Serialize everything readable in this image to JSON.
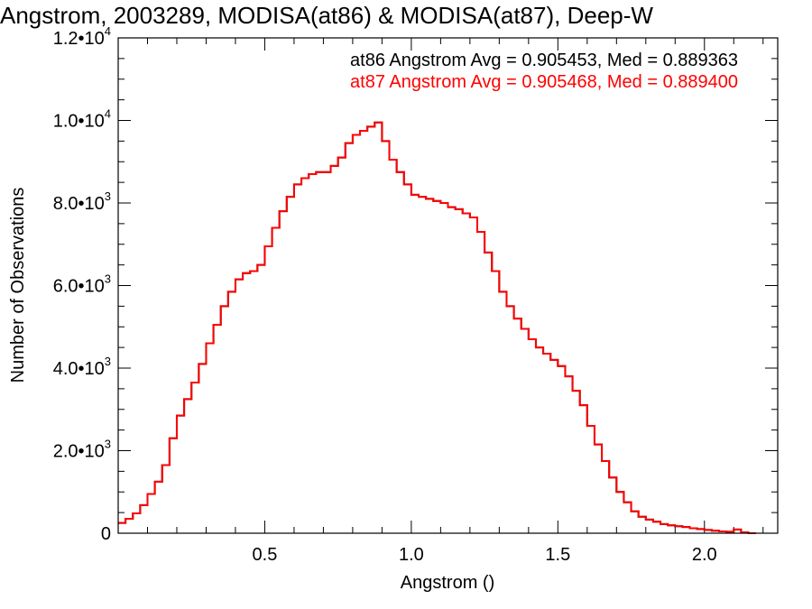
{
  "chart_data": {
    "type": "histogram-step",
    "title": "Angstrom, 2003289, MODISA(at86) & MODISA(at87), Deep-W",
    "xlabel": "Angstrom ()",
    "ylabel": "Number of Observations",
    "xlim": [
      0.0,
      2.25
    ],
    "ylim": [
      0,
      12000
    ],
    "x_ticks": [
      {
        "value": 0.5,
        "label": "0.5"
      },
      {
        "value": 1.0,
        "label": "1.0"
      },
      {
        "value": 1.5,
        "label": "1.5"
      },
      {
        "value": 2.0,
        "label": "2.0"
      }
    ],
    "y_ticks": [
      {
        "value": 0,
        "mantissa": "0",
        "exponent": ""
      },
      {
        "value": 2000,
        "mantissa": "2.0•10",
        "exponent": "3"
      },
      {
        "value": 4000,
        "mantissa": "4.0•10",
        "exponent": "3"
      },
      {
        "value": 6000,
        "mantissa": "6.0•10",
        "exponent": "3"
      },
      {
        "value": 8000,
        "mantissa": "8.0•10",
        "exponent": "3"
      },
      {
        "value": 10000,
        "mantissa": "1.0•10",
        "exponent": "4"
      },
      {
        "value": 12000,
        "mantissa": "1.2•10",
        "exponent": "4"
      }
    ],
    "grid": false,
    "series": [
      {
        "name": "at86",
        "color": "#000000",
        "stats_label": "at86 Angstrom Avg = 0.905453, Med = 0.889363",
        "x": [
          0.0,
          0.025,
          0.05,
          0.075,
          0.1,
          0.125,
          0.15,
          0.175,
          0.2,
          0.225,
          0.25,
          0.275,
          0.3,
          0.325,
          0.35,
          0.375,
          0.4,
          0.425,
          0.45,
          0.475,
          0.5,
          0.525,
          0.55,
          0.575,
          0.6,
          0.625,
          0.65,
          0.675,
          0.7,
          0.725,
          0.75,
          0.775,
          0.8,
          0.825,
          0.85,
          0.875,
          0.9,
          0.925,
          0.95,
          0.975,
          1.0,
          1.025,
          1.05,
          1.075,
          1.1,
          1.125,
          1.15,
          1.175,
          1.2,
          1.225,
          1.25,
          1.275,
          1.3,
          1.325,
          1.35,
          1.375,
          1.4,
          1.425,
          1.45,
          1.475,
          1.5,
          1.525,
          1.55,
          1.575,
          1.6,
          1.625,
          1.65,
          1.675,
          1.7,
          1.725,
          1.75,
          1.775,
          1.8,
          1.825,
          1.85,
          1.875,
          1.9,
          1.925,
          1.95,
          1.975,
          2.0,
          2.025,
          2.05,
          2.075,
          2.1,
          2.125,
          2.15
        ],
        "y": [
          250,
          350,
          480,
          680,
          950,
          1250,
          1650,
          2300,
          2850,
          3250,
          3650,
          4100,
          4600,
          5050,
          5500,
          5850,
          6150,
          6300,
          6350,
          6500,
          6950,
          7400,
          7800,
          8150,
          8450,
          8600,
          8700,
          8750,
          8750,
          8900,
          9100,
          9450,
          9650,
          9750,
          9850,
          9950,
          9500,
          9050,
          8750,
          8450,
          8200,
          8150,
          8100,
          8050,
          8000,
          7900,
          7850,
          7750,
          7650,
          7300,
          6800,
          6350,
          5850,
          5500,
          5200,
          4950,
          4700,
          4500,
          4350,
          4200,
          4050,
          3800,
          3450,
          3100,
          2600,
          2150,
          1750,
          1350,
          1000,
          750,
          530,
          400,
          330,
          280,
          220,
          190,
          170,
          150,
          120,
          100,
          80,
          60,
          45,
          35,
          90,
          20,
          0
        ]
      },
      {
        "name": "at87",
        "color": "#ff0000",
        "stats_label": "at87 Angstrom Avg = 0.905468, Med = 0.889400",
        "x": [
          0.0,
          0.025,
          0.05,
          0.075,
          0.1,
          0.125,
          0.15,
          0.175,
          0.2,
          0.225,
          0.25,
          0.275,
          0.3,
          0.325,
          0.35,
          0.375,
          0.4,
          0.425,
          0.45,
          0.475,
          0.5,
          0.525,
          0.55,
          0.575,
          0.6,
          0.625,
          0.65,
          0.675,
          0.7,
          0.725,
          0.75,
          0.775,
          0.8,
          0.825,
          0.85,
          0.875,
          0.9,
          0.925,
          0.95,
          0.975,
          1.0,
          1.025,
          1.05,
          1.075,
          1.1,
          1.125,
          1.15,
          1.175,
          1.2,
          1.225,
          1.25,
          1.275,
          1.3,
          1.325,
          1.35,
          1.375,
          1.4,
          1.425,
          1.45,
          1.475,
          1.5,
          1.525,
          1.55,
          1.575,
          1.6,
          1.625,
          1.65,
          1.675,
          1.7,
          1.725,
          1.75,
          1.775,
          1.8,
          1.825,
          1.85,
          1.875,
          1.9,
          1.925,
          1.95,
          1.975,
          2.0,
          2.025,
          2.05,
          2.075,
          2.1,
          2.125,
          2.15
        ],
        "y": [
          250,
          350,
          480,
          680,
          950,
          1250,
          1650,
          2300,
          2850,
          3250,
          3650,
          4100,
          4600,
          5050,
          5500,
          5850,
          6150,
          6300,
          6350,
          6500,
          6950,
          7400,
          7800,
          8150,
          8450,
          8600,
          8700,
          8750,
          8750,
          8900,
          9100,
          9450,
          9650,
          9750,
          9850,
          9950,
          9500,
          9050,
          8750,
          8450,
          8200,
          8150,
          8100,
          8050,
          8000,
          7900,
          7850,
          7750,
          7650,
          7300,
          6800,
          6350,
          5850,
          5500,
          5200,
          4950,
          4700,
          4500,
          4350,
          4200,
          4050,
          3800,
          3450,
          3100,
          2600,
          2150,
          1750,
          1350,
          1000,
          750,
          530,
          400,
          330,
          280,
          220,
          190,
          170,
          150,
          120,
          100,
          80,
          60,
          45,
          35,
          90,
          20,
          0
        ]
      }
    ]
  }
}
